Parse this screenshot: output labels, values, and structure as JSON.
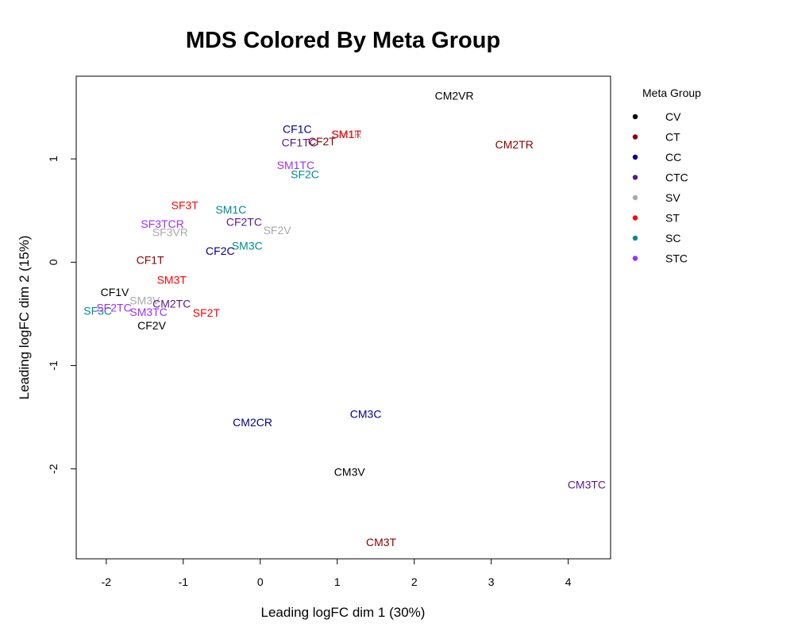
{
  "chart_data": {
    "type": "scatter",
    "title": "MDS Colored By Meta Group",
    "xlabel": "Leading logFC dim 1 (30%)",
    "ylabel": "Leading logFC dim 2 (15%)",
    "xlim": [
      -2.39,
      4.55
    ],
    "ylim": [
      -2.87,
      1.8
    ],
    "xticks": [
      -2,
      -1,
      0,
      1,
      2,
      3,
      4
    ],
    "yticks": [
      -2,
      -1,
      0,
      1
    ],
    "grid": false,
    "legend": {
      "title": "Meta Group",
      "placement": "right",
      "entries": [
        {
          "name": "CV",
          "color": "#000000"
        },
        {
          "name": "CT",
          "color": "#8b0000"
        },
        {
          "name": "CC",
          "color": "#00008b"
        },
        {
          "name": "CTC",
          "color": "#551a8b"
        },
        {
          "name": "SV",
          "color": "#a9a9a9"
        },
        {
          "name": "ST",
          "color": "#ff0000"
        },
        {
          "name": "SC",
          "color": "#008b8b"
        },
        {
          "name": "STC",
          "color": "#9b30ff"
        }
      ]
    },
    "points": [
      {
        "label": "CM2VR",
        "x": 2.52,
        "y": 1.61,
        "group": "CV"
      },
      {
        "label": "CF1C",
        "x": 0.48,
        "y": 1.29,
        "group": "CC"
      },
      {
        "label": "SM1R",
        "x": 1.12,
        "y": 1.24,
        "group": "SV"
      },
      {
        "label": "SM1T",
        "x": 1.12,
        "y": 1.24,
        "group": "ST"
      },
      {
        "label": "CF1TC",
        "x": 0.51,
        "y": 1.16,
        "group": "CTC"
      },
      {
        "label": "CF2T",
        "x": 0.8,
        "y": 1.17,
        "group": "CT"
      },
      {
        "label": "CM2TR",
        "x": 3.3,
        "y": 1.14,
        "group": "CT"
      },
      {
        "label": "SM1TC",
        "x": 0.46,
        "y": 0.94,
        "group": "STC"
      },
      {
        "label": "SF2C",
        "x": 0.58,
        "y": 0.85,
        "group": "SC"
      },
      {
        "label": "SF3T",
        "x": -0.98,
        "y": 0.55,
        "group": "ST"
      },
      {
        "label": "SM1C",
        "x": -0.38,
        "y": 0.51,
        "group": "SC"
      },
      {
        "label": "CF2TC",
        "x": -0.21,
        "y": 0.39,
        "group": "CTC"
      },
      {
        "label": "SF3TCR",
        "x": -1.27,
        "y": 0.37,
        "group": "STC"
      },
      {
        "label": "SF3VR",
        "x": -1.17,
        "y": 0.29,
        "group": "SV"
      },
      {
        "label": "SF2V",
        "x": 0.22,
        "y": 0.31,
        "group": "SV"
      },
      {
        "label": "SM3C",
        "x": -0.17,
        "y": 0.16,
        "group": "SC"
      },
      {
        "label": "CF2C",
        "x": -0.52,
        "y": 0.11,
        "group": "CC"
      },
      {
        "label": "CF1T",
        "x": -1.43,
        "y": 0.02,
        "group": "CT"
      },
      {
        "label": "SM3T",
        "x": -1.15,
        "y": -0.17,
        "group": "ST"
      },
      {
        "label": "CF1V",
        "x": -1.89,
        "y": -0.29,
        "group": "CV"
      },
      {
        "label": "SM3V",
        "x": -1.5,
        "y": -0.37,
        "group": "SV"
      },
      {
        "label": "CM2TC",
        "x": -1.15,
        "y": -0.4,
        "group": "CTC"
      },
      {
        "label": "SF3C",
        "x": -2.11,
        "y": -0.47,
        "group": "SC"
      },
      {
        "label": "SF2TC",
        "x": -1.9,
        "y": -0.44,
        "group": "STC"
      },
      {
        "label": "SM3TC",
        "x": -1.45,
        "y": -0.48,
        "group": "STC"
      },
      {
        "label": "SF2T",
        "x": -0.7,
        "y": -0.49,
        "group": "ST"
      },
      {
        "label": "CF2V",
        "x": -1.41,
        "y": -0.61,
        "group": "CV"
      },
      {
        "label": "CM3C",
        "x": 1.37,
        "y": -1.47,
        "group": "CC"
      },
      {
        "label": "CM2CR",
        "x": -0.1,
        "y": -1.55,
        "group": "CC"
      },
      {
        "label": "CM3V",
        "x": 1.16,
        "y": -2.03,
        "group": "CV"
      },
      {
        "label": "CM3TC",
        "x": 4.24,
        "y": -2.15,
        "group": "CTC"
      },
      {
        "label": "CM3T",
        "x": 1.57,
        "y": -2.71,
        "group": "CT"
      }
    ]
  }
}
